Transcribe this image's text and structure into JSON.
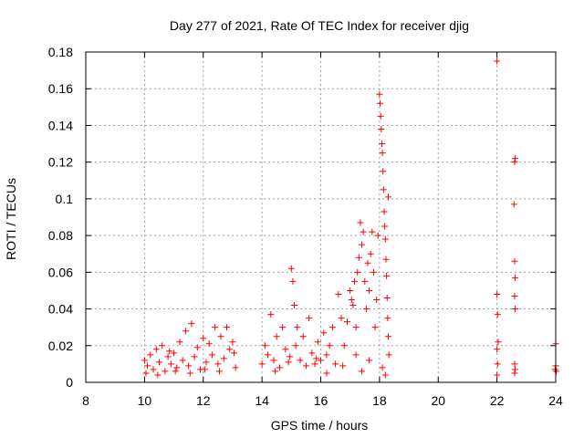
{
  "chart_data": {
    "type": "scatter",
    "title": "Day 277 of 2021, Rate Of TEC Index for receiver djig",
    "xlabel": "GPS time / hours",
    "ylabel": "ROTI / TECUs",
    "xlim": [
      8,
      24
    ],
    "ylim": [
      0,
      0.18
    ],
    "x_ticks": [
      8,
      10,
      12,
      14,
      16,
      18,
      20,
      22,
      24
    ],
    "y_ticks": [
      0,
      0.02,
      0.04,
      0.06,
      0.08,
      0.1,
      0.12,
      0.14,
      0.16,
      0.18
    ],
    "x_tick_labels": [
      "8",
      "10",
      "12",
      "14",
      "16",
      "18",
      "20",
      "22",
      "24"
    ],
    "y_tick_labels": [
      "0",
      "0.02",
      "0.04",
      "0.06",
      "0.08",
      "0.1",
      "0.12",
      "0.14",
      "0.16",
      "0.18"
    ],
    "grid": true,
    "marker": "+",
    "series_color": "#ff0000",
    "series": [
      {
        "name": "ROTI",
        "points": [
          [
            10.0,
            0.012
          ],
          [
            10.1,
            0.009
          ],
          [
            10.2,
            0.015
          ],
          [
            10.3,
            0.007
          ],
          [
            10.4,
            0.018
          ],
          [
            10.5,
            0.011
          ],
          [
            10.6,
            0.02
          ],
          [
            10.7,
            0.006
          ],
          [
            10.8,
            0.014
          ],
          [
            10.9,
            0.01
          ],
          [
            11.0,
            0.016
          ],
          [
            11.1,
            0.008
          ],
          [
            11.2,
            0.022
          ],
          [
            11.3,
            0.012
          ],
          [
            11.4,
            0.028
          ],
          [
            11.5,
            0.009
          ],
          [
            11.6,
            0.032
          ],
          [
            11.7,
            0.014
          ],
          [
            11.8,
            0.019
          ],
          [
            11.9,
            0.007
          ],
          [
            12.0,
            0.024
          ],
          [
            12.1,
            0.011
          ],
          [
            12.2,
            0.021
          ],
          [
            12.3,
            0.015
          ],
          [
            12.4,
            0.03
          ],
          [
            12.5,
            0.01
          ],
          [
            12.6,
            0.025
          ],
          [
            12.7,
            0.013
          ],
          [
            12.8,
            0.03
          ],
          [
            12.9,
            0.018
          ],
          [
            13.0,
            0.022
          ],
          [
            13.1,
            0.008
          ],
          [
            10.05,
            0.005
          ],
          [
            10.45,
            0.004
          ],
          [
            11.05,
            0.006
          ],
          [
            11.55,
            0.005
          ],
          [
            12.05,
            0.007
          ],
          [
            12.55,
            0.006
          ],
          [
            13.05,
            0.016
          ],
          [
            10.85,
            0.017
          ],
          [
            14.0,
            0.01
          ],
          [
            14.1,
            0.02
          ],
          [
            14.2,
            0.015
          ],
          [
            14.3,
            0.037
          ],
          [
            14.4,
            0.012
          ],
          [
            14.5,
            0.025
          ],
          [
            14.6,
            0.008
          ],
          [
            14.7,
            0.03
          ],
          [
            14.8,
            0.018
          ],
          [
            14.9,
            0.011
          ],
          [
            15.0,
            0.062
          ],
          [
            15.05,
            0.055
          ],
          [
            15.1,
            0.042
          ],
          [
            15.15,
            0.02
          ],
          [
            15.2,
            0.03
          ],
          [
            15.3,
            0.012
          ],
          [
            15.4,
            0.025
          ],
          [
            15.5,
            0.009
          ],
          [
            15.6,
            0.035
          ],
          [
            15.7,
            0.016
          ],
          [
            15.8,
            0.01
          ],
          [
            15.9,
            0.022
          ],
          [
            16.0,
            0.012
          ],
          [
            16.1,
            0.027
          ],
          [
            16.2,
            0.015
          ],
          [
            16.3,
            0.02
          ],
          [
            16.4,
            0.03
          ],
          [
            16.5,
            0.01
          ],
          [
            16.6,
            0.048
          ],
          [
            16.7,
            0.035
          ],
          [
            16.8,
            0.02
          ],
          [
            16.9,
            0.033
          ],
          [
            17.0,
            0.05
          ],
          [
            17.05,
            0.045
          ],
          [
            17.1,
            0.042
          ],
          [
            17.15,
            0.055
          ],
          [
            17.2,
            0.03
          ],
          [
            17.25,
            0.06
          ],
          [
            17.3,
            0.068
          ],
          [
            17.35,
            0.087
          ],
          [
            17.4,
            0.075
          ],
          [
            17.45,
            0.082
          ],
          [
            17.5,
            0.055
          ],
          [
            17.55,
            0.04
          ],
          [
            17.6,
            0.065
          ],
          [
            17.65,
            0.05
          ],
          [
            17.7,
            0.07
          ],
          [
            17.75,
            0.082
          ],
          [
            17.8,
            0.06
          ],
          [
            17.85,
            0.03
          ],
          [
            17.9,
            0.045
          ],
          [
            17.95,
            0.08
          ],
          [
            18.0,
            0.157
          ],
          [
            18.02,
            0.152
          ],
          [
            18.04,
            0.145
          ],
          [
            18.06,
            0.138
          ],
          [
            18.08,
            0.13
          ],
          [
            18.1,
            0.125
          ],
          [
            18.12,
            0.115
          ],
          [
            18.14,
            0.105
          ],
          [
            18.16,
            0.093
          ],
          [
            18.18,
            0.085
          ],
          [
            18.2,
            0.078
          ],
          [
            18.22,
            0.067
          ],
          [
            18.24,
            0.058
          ],
          [
            18.26,
            0.046
          ],
          [
            18.28,
            0.035
          ],
          [
            18.3,
            0.025
          ],
          [
            18.32,
            0.015
          ],
          [
            18.1,
            0.008
          ],
          [
            17.65,
            0.012
          ],
          [
            17.2,
            0.015
          ],
          [
            16.75,
            0.009
          ],
          [
            15.85,
            0.013
          ],
          [
            14.95,
            0.014
          ],
          [
            14.45,
            0.006
          ],
          [
            16.2,
            0.005
          ],
          [
            17.4,
            0.006
          ],
          [
            18.2,
            0.004
          ],
          [
            18.3,
            0.101
          ],
          [
            22.0,
            0.175
          ],
          [
            22.0,
            0.048
          ],
          [
            22.02,
            0.037
          ],
          [
            22.04,
            0.022
          ],
          [
            22.0,
            0.018
          ],
          [
            22.02,
            0.01
          ],
          [
            22.0,
            0.004
          ],
          [
            22.6,
            0.12
          ],
          [
            22.62,
            0.122
          ],
          [
            22.58,
            0.097
          ],
          [
            22.6,
            0.066
          ],
          [
            22.62,
            0.057
          ],
          [
            22.6,
            0.047
          ],
          [
            22.62,
            0.04
          ],
          [
            22.6,
            0.01
          ],
          [
            22.62,
            0.007
          ],
          [
            22.6,
            0.005
          ],
          [
            24.0,
            0.021
          ],
          [
            24.0,
            0.009
          ],
          [
            23.98,
            0.007
          ],
          [
            24.02,
            0.006
          ]
        ]
      }
    ]
  }
}
